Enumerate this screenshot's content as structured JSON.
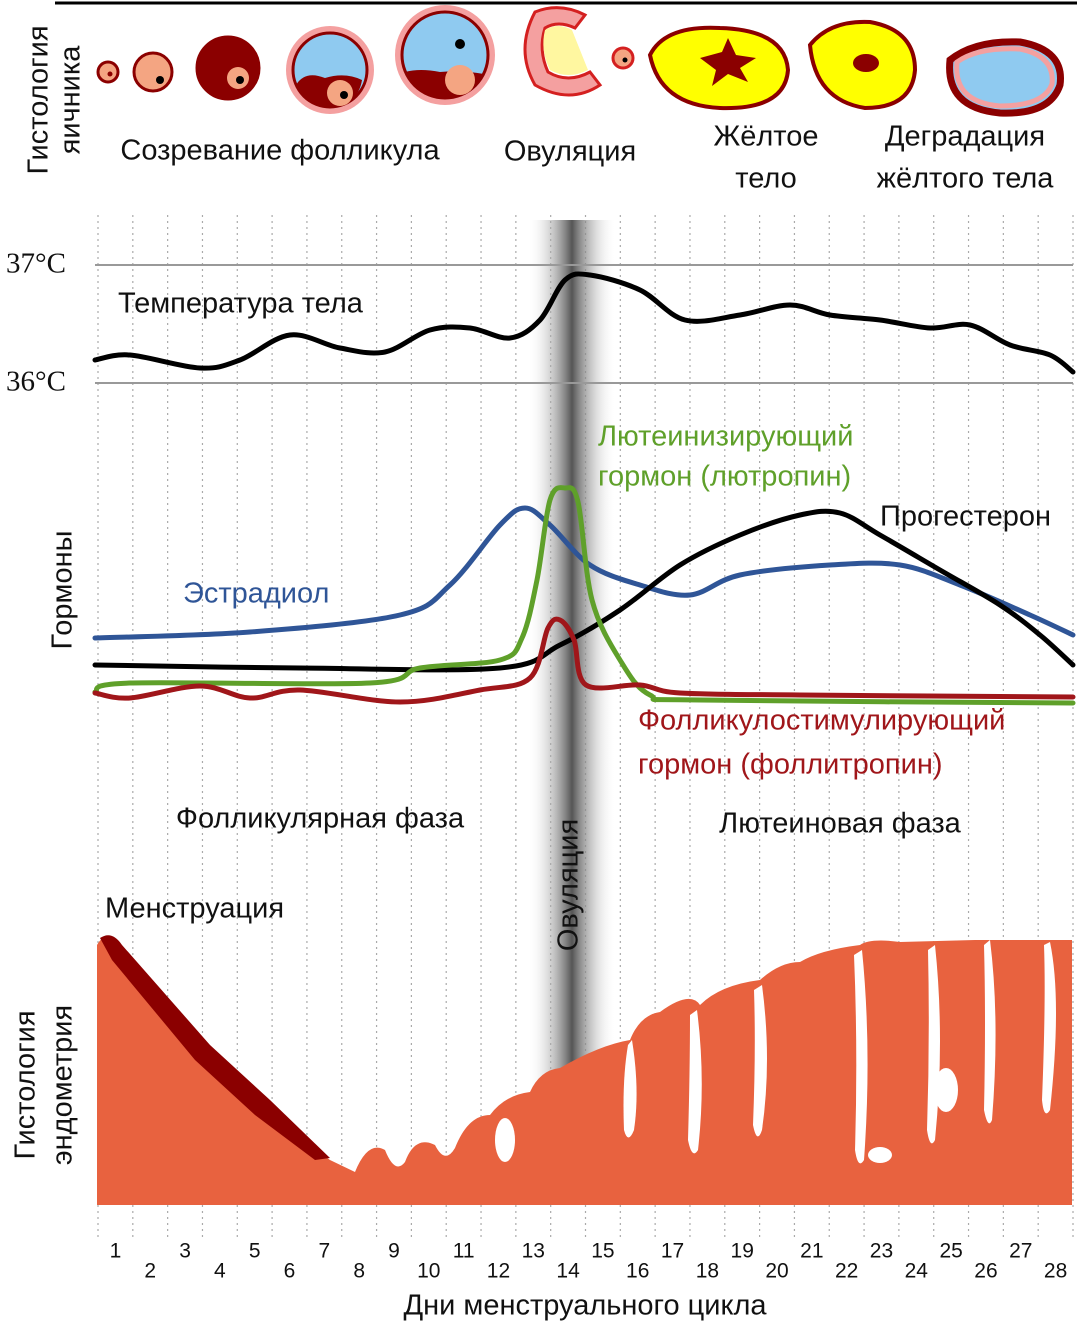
{
  "ovary": {
    "label": [
      "Гистология",
      "яичника"
    ],
    "stages": {
      "maturation": "Созревание фолликула",
      "ovulation": "Овуляция",
      "corpus_luteum": [
        "Жёлтое",
        "тело"
      ],
      "degradation": [
        "Деградация",
        "жёлтого тела"
      ]
    }
  },
  "temperature": {
    "label": "Температура тела",
    "ticks": [
      "37°C",
      "36°C"
    ]
  },
  "hormones": {
    "label": "Гормоны",
    "lh": [
      "Лютеинизирующий",
      "гормон (лютропин)"
    ],
    "progesterone": "Прогестерон",
    "estradiol": "Эстрадиол",
    "fsh": [
      "Фолликулостимулирующий",
      "гормон (фоллитропин)"
    ]
  },
  "phases": {
    "follicular": "Фолликулярная фаза",
    "ovulation": "Овуляция",
    "luteal": "Лютеиновая фаза",
    "menstruation": "Менструация"
  },
  "endometrium": {
    "label": [
      "Гистология",
      "эндометрия"
    ]
  },
  "days": {
    "ticks": [
      1,
      2,
      3,
      4,
      5,
      6,
      7,
      8,
      9,
      10,
      11,
      12,
      13,
      14,
      15,
      16,
      17,
      18,
      19,
      20,
      21,
      22,
      23,
      24,
      25,
      26,
      27,
      28
    ],
    "label": "Дни менструального цикла"
  }
}
